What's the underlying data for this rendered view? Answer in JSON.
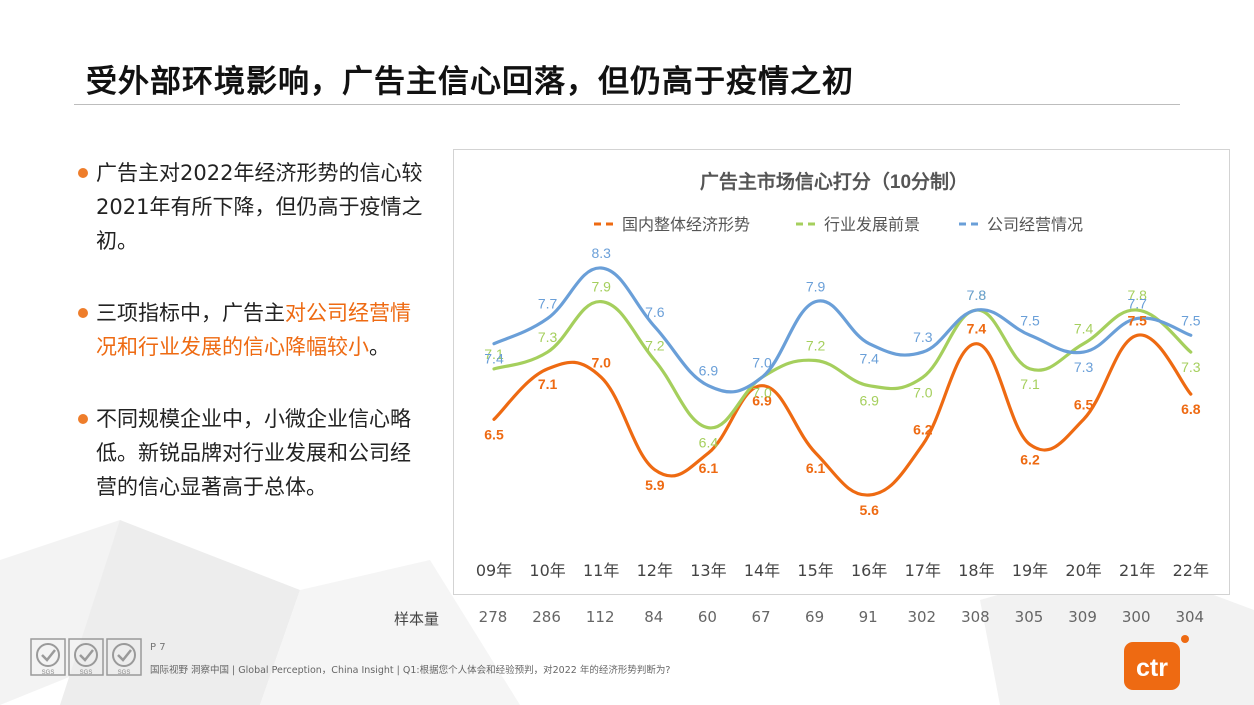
{
  "page": {
    "title": "受外部环境影响，广告主信心回落，但仍高于疫情之初"
  },
  "bullets": [
    {
      "parts": [
        {
          "text": "广告主对2022年经济形势的信心较2021年有所下降，但仍高于疫情之初。",
          "highlight": false
        }
      ]
    },
    {
      "parts": [
        {
          "text": "三项指标中，广告主",
          "highlight": false
        },
        {
          "text": "对公司经营情况和行业发展的信心降幅较小",
          "highlight": true
        },
        {
          "text": "。",
          "highlight": false
        }
      ]
    },
    {
      "parts": [
        {
          "text": "不同规模企业中，小微企业信心略低。新锐品牌对行业发展和公司经营的信心显著高于总体。",
          "highlight": false
        }
      ]
    }
  ],
  "chart_data": {
    "type": "line",
    "title": "广告主市场信心打分（10分制）",
    "categories": [
      "09年",
      "10年",
      "11年",
      "12年",
      "13年",
      "14年",
      "15年",
      "16年",
      "17年",
      "18年",
      "19年",
      "20年",
      "21年",
      "22年"
    ],
    "series": [
      {
        "name": "国内整体经济形势",
        "color": "#ee6a12",
        "values": [
          6.5,
          7.1,
          7.0,
          5.9,
          6.1,
          6.9,
          6.1,
          5.6,
          6.2,
          7.4,
          6.2,
          6.5,
          7.5,
          6.8
        ]
      },
      {
        "name": "行业发展前景",
        "color": "#a5cf5d",
        "values": [
          7.1,
          7.3,
          7.9,
          7.2,
          6.4,
          7.0,
          7.2,
          6.9,
          7.0,
          7.8,
          7.1,
          7.4,
          7.8,
          7.3
        ]
      },
      {
        "name": "公司经营情况",
        "color": "#6a9fd8",
        "values": [
          7.4,
          7.7,
          8.3,
          7.6,
          6.9,
          7.0,
          7.9,
          7.4,
          7.3,
          7.8,
          7.5,
          7.3,
          7.7,
          7.5
        ]
      }
    ],
    "legend_position": "top",
    "grid": false
  },
  "sample": {
    "label": "样本量",
    "values": [
      "278",
      "286",
      "112",
      "84",
      "60",
      "67",
      "69",
      "91",
      "302",
      "308",
      "305",
      "309",
      "300",
      "304"
    ]
  },
  "footer": {
    "page_number": "P 7",
    "text": "国际视野 洞察中国 | Global Perception，China Insight  | Q1:根据您个人体会和经验预判，对2022 年的经济形势判断为?",
    "cert_text": "SGS",
    "logo_text": "ctr"
  }
}
